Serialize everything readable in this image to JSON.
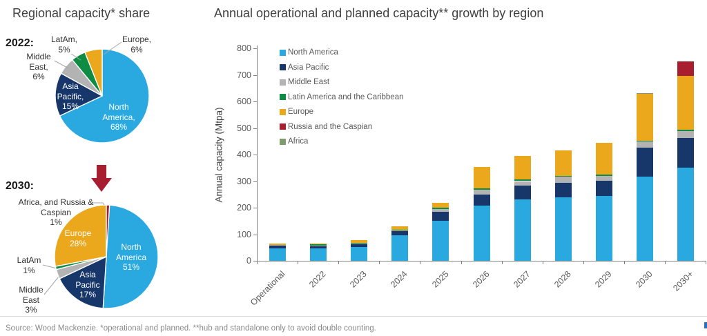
{
  "left": {
    "title": "Regional capacity* share",
    "pie_2022": {
      "year_label": "2022:",
      "slices": [
        {
          "label": "North America",
          "pct": 68,
          "color": "#29A9DF"
        },
        {
          "label": "Asia Pacific",
          "pct": 15,
          "color": "#17376B"
        },
        {
          "label": "Middle East",
          "pct": 6,
          "color": "#B3B3B3"
        },
        {
          "label": "LatAm",
          "pct": 5,
          "color": "#0E8C44"
        },
        {
          "label": "Europe",
          "pct": 6,
          "color": "#EBA81C"
        }
      ],
      "callouts": {
        "latam": "LatAm,\n5%",
        "europe": "Europe,\n6%",
        "middle_east": "Middle\nEast,\n6%",
        "asia_pacific": "Asia\nPacific,\n15%",
        "north_america": "North\nAmerica,\n68%"
      }
    },
    "pie_2030": {
      "year_label": "2030:",
      "slices": [
        {
          "label": "North America",
          "pct": 51,
          "color": "#29A9DF"
        },
        {
          "label": "Asia Pacific",
          "pct": 17,
          "color": "#17376B"
        },
        {
          "label": "Middle East",
          "pct": 3,
          "color": "#B3B3B3"
        },
        {
          "label": "LatAm",
          "pct": 1,
          "color": "#0E8C44"
        },
        {
          "label": "Europe",
          "pct": 28,
          "color": "#EBA81C"
        },
        {
          "label": "Africa, and Russia & Caspian",
          "pct": 1,
          "color": "#A81E2F"
        }
      ],
      "callouts": {
        "africa_russia": "Africa, and Russia &\nCaspian\n1%",
        "europe": "Europe\n28%",
        "north_america": "North\nAmerica\n51%",
        "asia_pacific": "Asia\nPacific\n17%",
        "latam": "LatAm\n1%",
        "middle_east": "Middle\nEast\n3%"
      }
    }
  },
  "right": {
    "title": "Annual operational and planned capacity** growth by region"
  },
  "chart_data": {
    "type": "stacked_bar",
    "title": "Annual operational and planned capacity** growth by region",
    "xlabel": "",
    "ylabel": "Annual capacity (Mtpa)",
    "ylim": [
      0,
      800
    ],
    "ytick_step": 100,
    "grid": false,
    "legend_position": "upper-left-inside",
    "categories": [
      "Operational",
      "2022",
      "2023",
      "2024",
      "2025",
      "2026",
      "2027",
      "2028",
      "2029",
      "2030",
      "2030+"
    ],
    "series": [
      {
        "name": "North America",
        "color": "#29A9DF",
        "values": [
          48,
          47,
          52,
          96,
          150,
          207,
          231,
          239,
          244,
          317,
          350
        ]
      },
      {
        "name": "Asia Pacific",
        "color": "#17376B",
        "values": [
          10,
          9,
          10,
          17,
          34,
          43,
          51,
          55,
          57,
          110,
          112
        ]
      },
      {
        "name": "Middle East",
        "color": "#B3B3B3",
        "values": [
          3,
          2,
          2,
          2,
          12,
          17,
          18,
          22,
          19,
          22,
          26
        ]
      },
      {
        "name": "Latin America and the Caribbean",
        "color": "#0E8C44",
        "values": [
          0,
          4,
          3,
          2,
          3,
          6,
          6,
          3,
          4,
          2,
          5
        ]
      },
      {
        "name": "Europe",
        "color": "#EBA81C",
        "values": [
          5,
          4,
          10,
          13,
          19,
          80,
          89,
          96,
          121,
          177,
          202
        ]
      },
      {
        "name": "Russia and the Caspian",
        "color": "#A81E2F",
        "values": [
          0,
          0,
          0,
          0,
          0,
          0,
          0,
          0,
          0,
          0,
          55
        ]
      },
      {
        "name": "Africa",
        "color": "#7F9C6F",
        "values": [
          0,
          0,
          0,
          0,
          0,
          0,
          0,
          0,
          0,
          4,
          0
        ]
      }
    ]
  },
  "footer": {
    "source": "Source: Wood Mackenzie. *operational and planned. **hub and standalone only to avoid double counting."
  }
}
